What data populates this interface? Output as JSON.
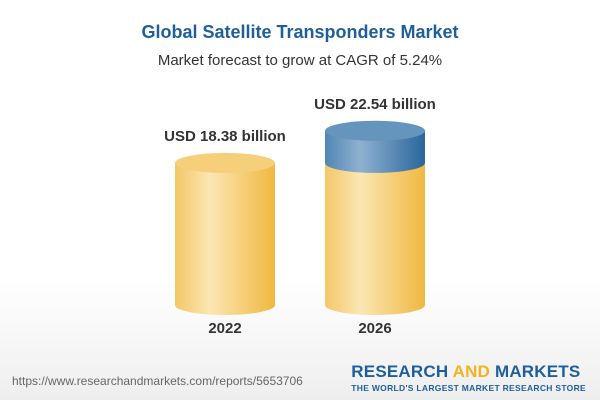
{
  "chart_data": {
    "type": "bar",
    "style": "3d-cylinder",
    "title": "Global Satellite Transponders Market",
    "subtitle": "Market forecast to grow at CAGR of 5.24%",
    "categories": [
      "2022",
      "2026"
    ],
    "values": [
      18.38,
      22.54
    ],
    "data_labels": [
      "USD 18.38 billion",
      "USD 22.54 billion"
    ],
    "unit": "USD billion",
    "colors": {
      "base": "#f3c155",
      "growth": "#3f7aab",
      "title": "#1f5f99"
    }
  },
  "footer": {
    "url": "https://www.researchandmarkets.com/reports/5653706",
    "logo_part1": "RESEARCH ",
    "logo_part2": "AND",
    "logo_part3": " MARKETS",
    "tagline": "THE WORLD'S LARGEST MARKET RESEARCH STORE"
  }
}
